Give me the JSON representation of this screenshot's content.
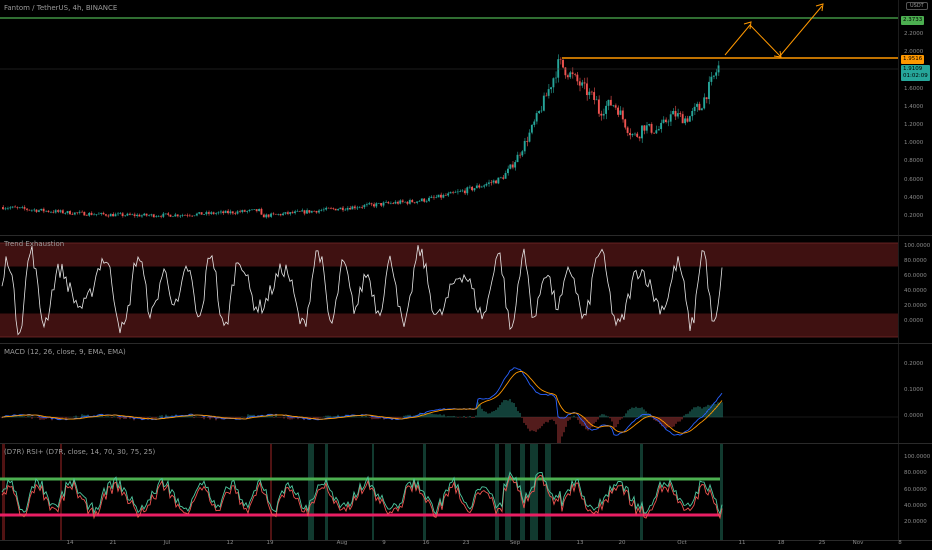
{
  "colors": {
    "up": "#26a69a",
    "down": "#ef5350",
    "orange": "#ff9800",
    "green": "#4caf50",
    "crimson": "#e91e63",
    "bg": "#000000",
    "band": "#4a1414"
  },
  "main": {
    "title": "Fantom / TetherUS, 4h, BINANCE",
    "currency": "USDT",
    "yticks": [
      "2.2000",
      "2.0000",
      "1.8000",
      "1.6000",
      "1.4000",
      "1.2000",
      "1.0000",
      "0.8000",
      "0.6000",
      "0.4000",
      "0.2000"
    ],
    "tag_target": "2.3733",
    "tag_resist": "1.9516",
    "tag_price": "1.9109",
    "tag_timer": "01:02:09"
  },
  "trend": {
    "title": "Trend Exhaustion",
    "yticks": [
      "100.0000",
      "80.0000",
      "60.0000",
      "40.0000",
      "20.0000",
      "0.0000"
    ]
  },
  "macd": {
    "title": "MACD (12, 26, close, 9, EMA, EMA)",
    "yticks": [
      "0.2000",
      "0.1000",
      "0.0000"
    ]
  },
  "rsi": {
    "title": "(D7R) RSI+ (D7R, close, 14, 70, 30, 75, 25)",
    "yticks": [
      "100.0000",
      "80.0000",
      "60.0000",
      "40.0000",
      "20.0000"
    ]
  },
  "xaxis": [
    "14",
    "21",
    "Jul",
    "12",
    "19",
    "Aug",
    "9",
    "16",
    "23",
    "Sep",
    "13",
    "20",
    "Oct",
    "11",
    "18",
    "25",
    "Nov",
    "8"
  ]
}
